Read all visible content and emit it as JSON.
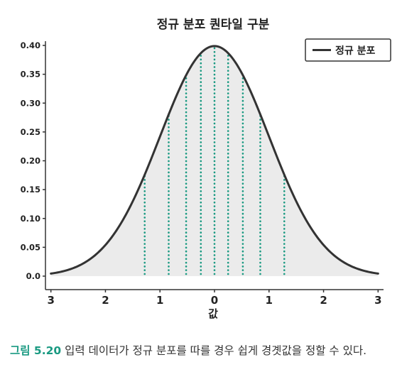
{
  "chart_data": {
    "type": "area",
    "title": "정규 분포 퀀타일 구분",
    "xlabel": "값",
    "ylabel": "",
    "xlim": [
      -3.1,
      3.1
    ],
    "ylim": [
      0.0,
      0.4
    ],
    "x_ticks": [
      -3,
      -2,
      -1,
      0,
      1,
      2,
      3
    ],
    "x_tick_labels": [
      "3",
      "2",
      "1",
      "0",
      "1",
      "2",
      "3"
    ],
    "y_ticks": [
      0.0,
      0.05,
      0.1,
      0.15,
      0.2,
      0.25,
      0.3,
      0.35,
      0.4
    ],
    "y_tick_labels": [
      "0.0",
      "0.05",
      "0.10",
      "0.15",
      "0.20",
      "0.25",
      "0.30",
      "0.35",
      "0.40"
    ],
    "series": [
      {
        "name": "정규 분포",
        "distribution": "normal",
        "mean": 0,
        "std": 1,
        "color": "#333333"
      }
    ],
    "fill_color": "#ebebeb",
    "quantile_lines": {
      "x": [
        -1.28,
        -0.84,
        -0.52,
        -0.25,
        0.0,
        0.25,
        0.52,
        0.84,
        1.28
      ],
      "color": "#1a9a82",
      "style": "dotted"
    },
    "legend": {
      "position": "top-right",
      "entries": [
        "정규 분포"
      ]
    },
    "grid": false
  },
  "caption": {
    "figure_label": "그림 5.20",
    "text": "입력 데이터가 정규 분포를 따를 경우 쉽게 경곗값을 정할 수 있다."
  }
}
